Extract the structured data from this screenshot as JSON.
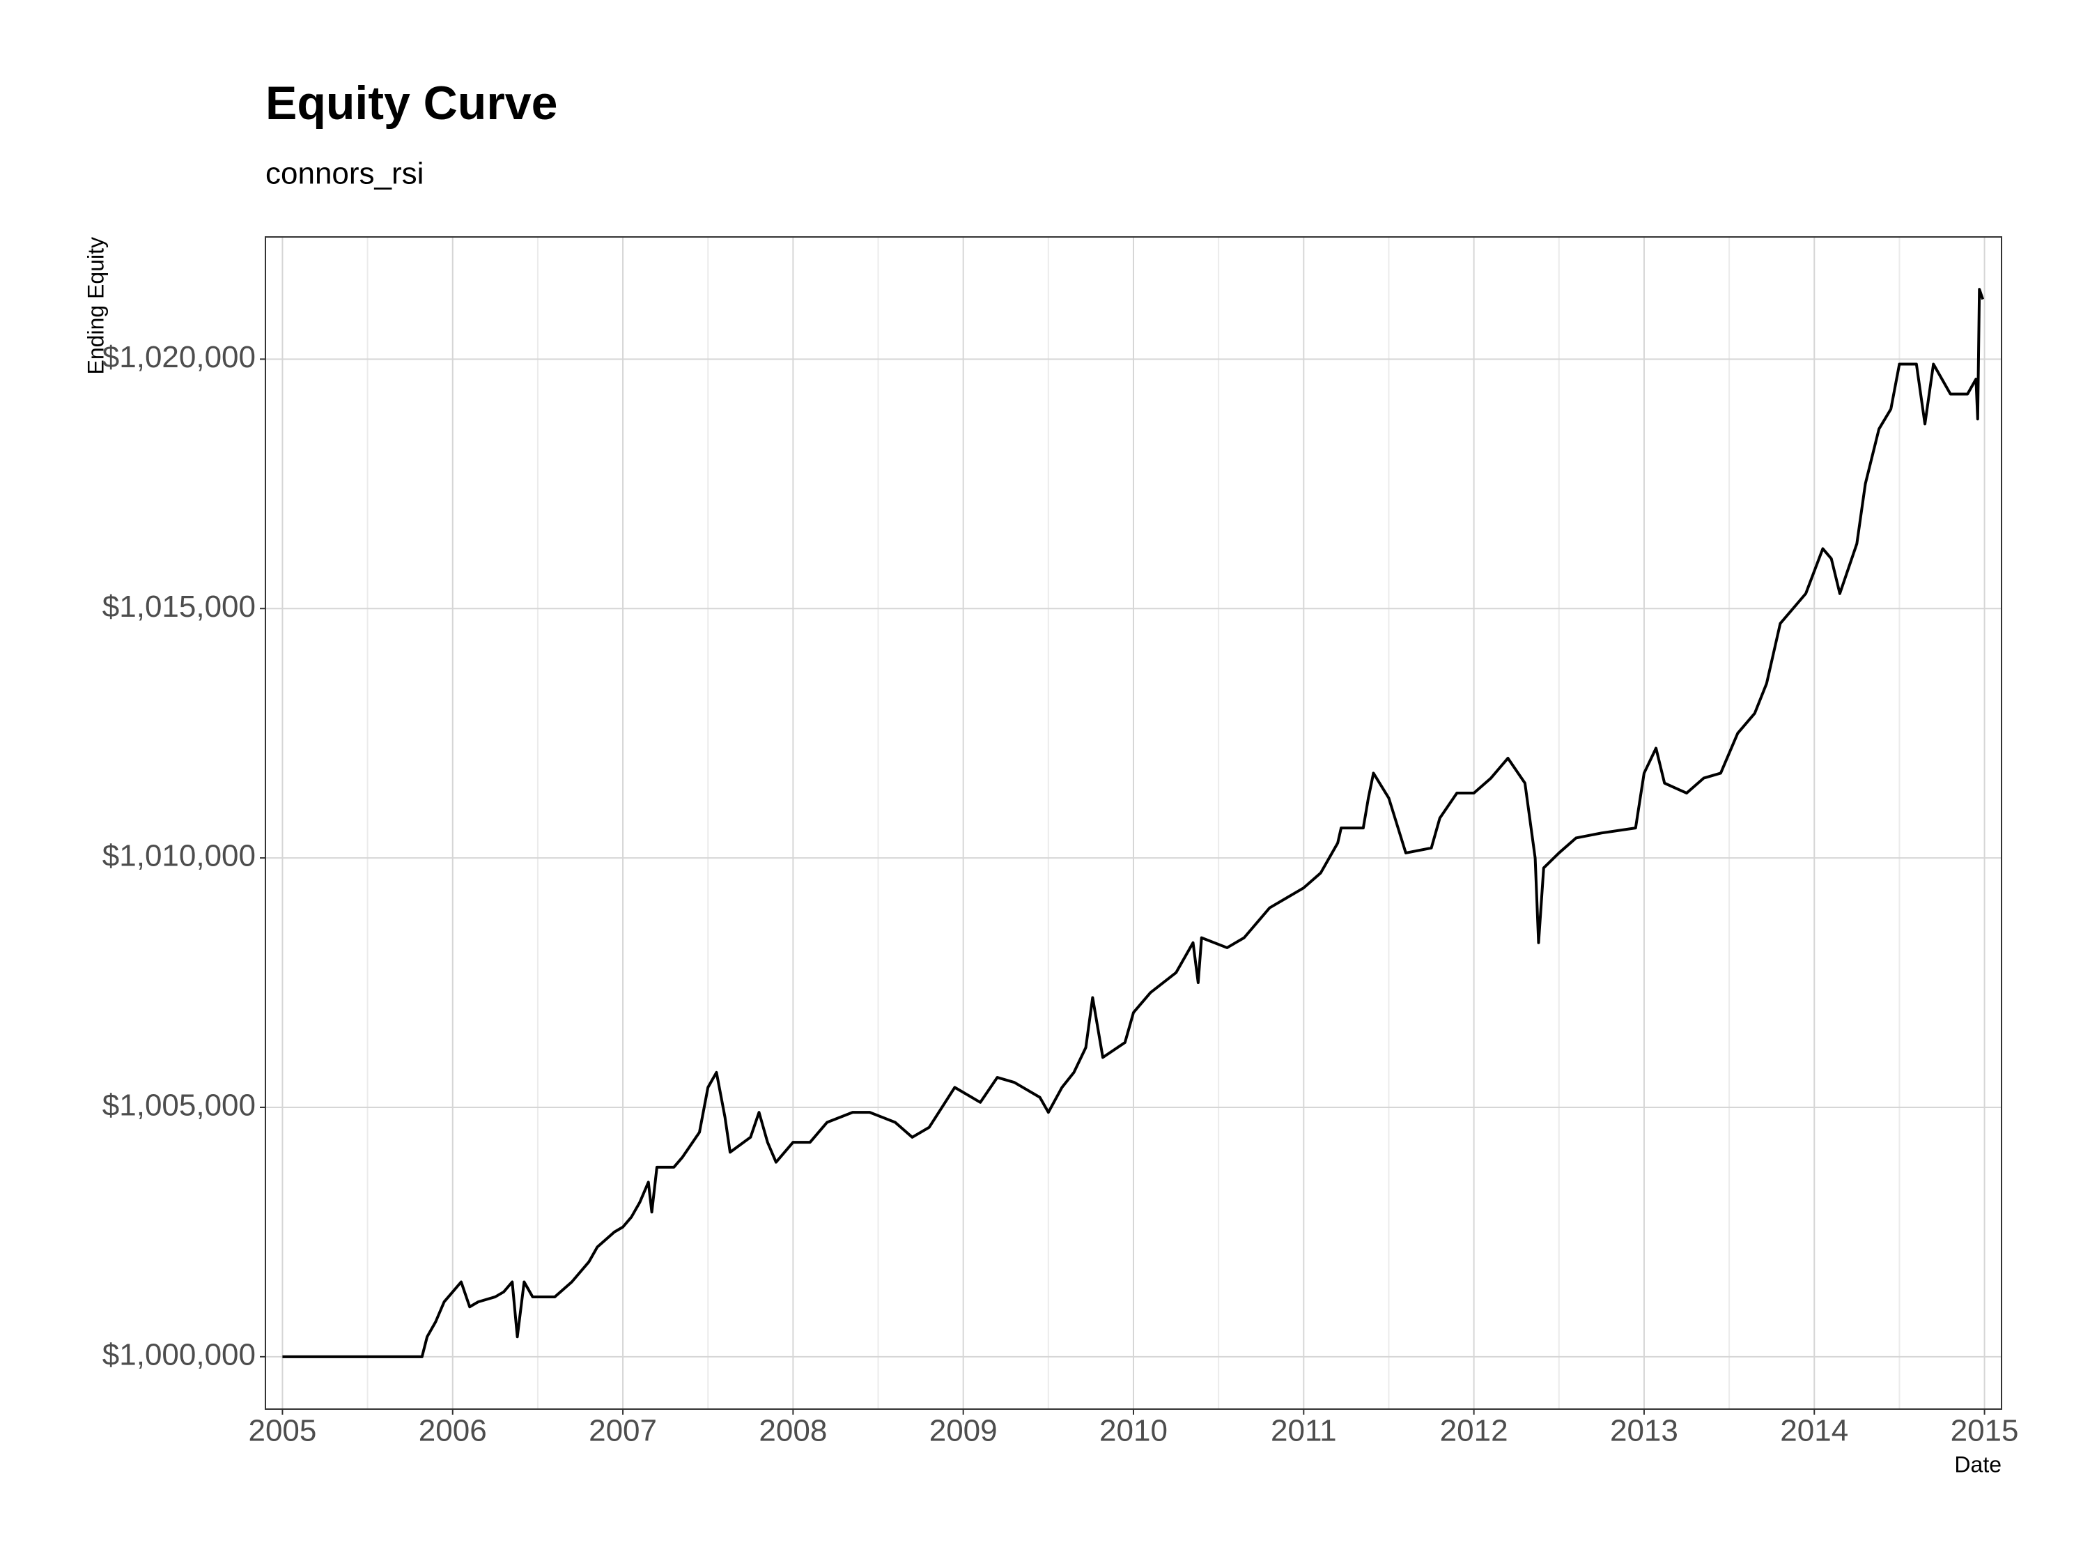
{
  "chart_data": {
    "type": "line",
    "title": "Equity Curve",
    "subtitle": "connors_rsi",
    "x_label": "Date",
    "y_label": "Ending Equity",
    "color": "#000000",
    "grid": true,
    "x": [
      2005.0,
      2005.82,
      2005.85,
      2005.9,
      2005.95,
      2006.0,
      2006.05,
      2006.1,
      2006.15,
      2006.25,
      2006.3,
      2006.35,
      2006.38,
      2006.42,
      2006.47,
      2006.6,
      2006.7,
      2006.8,
      2006.85,
      2006.95,
      2007.0,
      2007.05,
      2007.1,
      2007.15,
      2007.17,
      2007.2,
      2007.3,
      2007.35,
      2007.45,
      2007.5,
      2007.55,
      2007.6,
      2007.63,
      2007.75,
      2007.8,
      2007.85,
      2007.9,
      2008.0,
      2008.1,
      2008.2,
      2008.35,
      2008.45,
      2008.6,
      2008.7,
      2008.8,
      2008.95,
      2009.1,
      2009.2,
      2009.3,
      2009.45,
      2009.5,
      2009.58,
      2009.65,
      2009.72,
      2009.76,
      2009.82,
      2009.95,
      2010.0,
      2010.1,
      2010.25,
      2010.35,
      2010.38,
      2010.4,
      2010.55,
      2010.65,
      2010.8,
      2010.9,
      2011.0,
      2011.1,
      2011.2,
      2011.22,
      2011.35,
      2011.38,
      2011.41,
      2011.5,
      2011.6,
      2011.75,
      2011.8,
      2011.9,
      2012.0,
      2012.1,
      2012.2,
      2012.3,
      2012.36,
      2012.38,
      2012.41,
      2012.5,
      2012.6,
      2012.75,
      2012.95,
      2013.0,
      2013.07,
      2013.12,
      2013.25,
      2013.35,
      2013.45,
      2013.55,
      2013.65,
      2013.72,
      2013.8,
      2013.95,
      2014.05,
      2014.1,
      2014.15,
      2014.25,
      2014.3,
      2014.38,
      2014.45,
      2014.5,
      2014.6,
      2014.65,
      2014.7,
      2014.8,
      2014.9,
      2014.95,
      2014.96,
      2014.97,
      2014.99
    ],
    "values": [
      1000000,
      1000000,
      1000400,
      1000700,
      1001100,
      1001300,
      1001500,
      1001000,
      1001100,
      1001200,
      1001300,
      1001500,
      1000400,
      1001500,
      1001200,
      1001200,
      1001500,
      1001900,
      1002200,
      1002500,
      1002600,
      1002800,
      1003100,
      1003500,
      1002900,
      1003800,
      1003800,
      1004000,
      1004500,
      1005400,
      1005700,
      1004800,
      1004100,
      1004400,
      1004900,
      1004300,
      1003900,
      1004300,
      1004300,
      1004700,
      1004900,
      1004900,
      1004700,
      1004400,
      1004600,
      1005400,
      1005100,
      1005600,
      1005500,
      1005200,
      1004900,
      1005400,
      1005700,
      1006200,
      1007200,
      1006000,
      1006300,
      1006900,
      1007300,
      1007700,
      1008300,
      1007500,
      1008400,
      1008200,
      1008400,
      1009000,
      1009200,
      1009400,
      1009700,
      1010300,
      1010600,
      1010600,
      1011200,
      1011700,
      1011200,
      1010100,
      1010200,
      1010800,
      1011300,
      1011300,
      1011600,
      1012000,
      1011500,
      1010000,
      1008300,
      1009800,
      1010100,
      1010400,
      1010500,
      1010600,
      1011700,
      1012200,
      1011500,
      1011300,
      1011600,
      1011700,
      1012500,
      1012900,
      1013500,
      1014700,
      1015300,
      1016200,
      1016000,
      1015300,
      1016300,
      1017500,
      1018600,
      1019000,
      1019900,
      1019900,
      1018700,
      1019900,
      1019300,
      1019300,
      1019600,
      1018800,
      1021400,
      1021200
    ],
    "xlim": [
      2004.9,
      2015.1
    ],
    "xticks": [
      2005,
      2006,
      2007,
      2008,
      2009,
      2010,
      2011,
      2012,
      2013,
      2014,
      2015
    ],
    "ylim": [
      998950,
      1022450
    ],
    "yticks": [
      {
        "value": 1000000,
        "label": "$1,000,000"
      },
      {
        "value": 1005000,
        "label": "$1,005,000"
      },
      {
        "value": 1010000,
        "label": "$1,010,000"
      },
      {
        "value": 1015000,
        "label": "$1,015,000"
      },
      {
        "value": 1020000,
        "label": "$1,020,000"
      }
    ]
  }
}
